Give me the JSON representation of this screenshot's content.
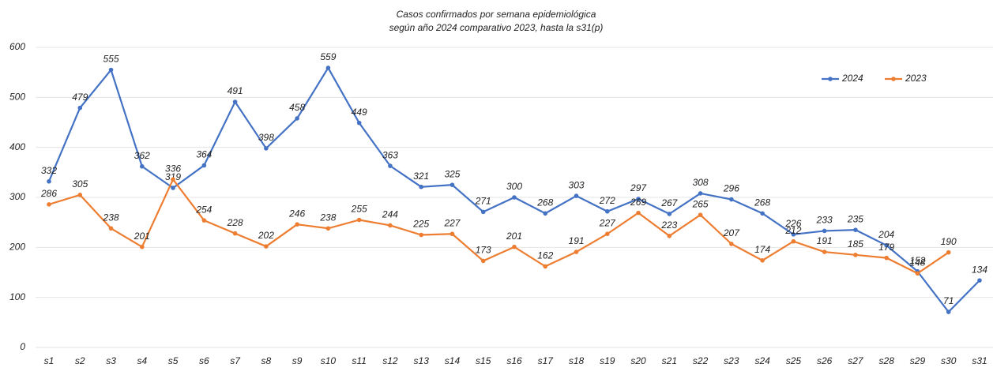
{
  "chart_data": {
    "type": "line",
    "title": "Casos confirmados por semana epidemiológica",
    "subtitle": "según año 2024 comparativo 2023, hasta la s31(p)",
    "categories": [
      "s1",
      "s2",
      "s3",
      "s4",
      "s5",
      "s6",
      "s7",
      "s8",
      "s9",
      "s10",
      "s11",
      "s12",
      "s13",
      "s14",
      "s15",
      "s16",
      "s17",
      "s18",
      "s19",
      "s20",
      "s21",
      "s22",
      "s23",
      "s24",
      "s25",
      "s26",
      "s27",
      "s28",
      "s29",
      "s30",
      "s31"
    ],
    "series": [
      {
        "name": "2024",
        "color": "#4472c4",
        "values": [
          332,
          479,
          555,
          362,
          319,
          364,
          491,
          398,
          458,
          559,
          449,
          363,
          321,
          325,
          271,
          300,
          268,
          303,
          272,
          297,
          267,
          308,
          296,
          268,
          226,
          233,
          235,
          204,
          152,
          71,
          134
        ]
      },
      {
        "name": "2023",
        "color": "#ed7d31",
        "values": [
          286,
          305,
          238,
          201,
          336,
          254,
          228,
          202,
          246,
          238,
          255,
          244,
          225,
          227,
          173,
          201,
          162,
          191,
          227,
          269,
          223,
          265,
          207,
          174,
          212,
          191,
          185,
          179,
          148,
          190,
          null
        ]
      }
    ],
    "ylim": [
      0,
      600
    ],
    "yticks": [
      0,
      100,
      200,
      300,
      400,
      500,
      600
    ],
    "grid": true,
    "legend": "top-right"
  }
}
